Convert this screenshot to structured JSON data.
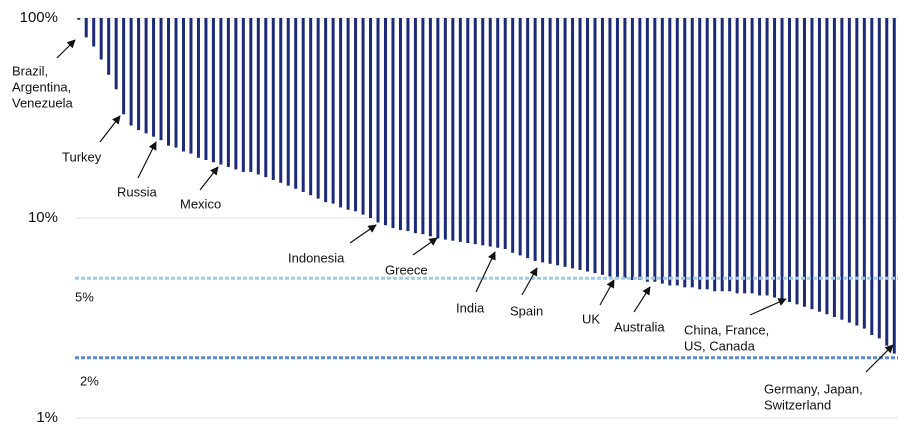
{
  "chart_data": {
    "type": "bar",
    "log_scale": true,
    "grid": true,
    "color": "#1c2a78",
    "ylim": [
      1,
      100
    ],
    "yticks": [
      {
        "value": 100,
        "label": "100%"
      },
      {
        "value": 10,
        "label": "10%"
      },
      {
        "value": 1,
        "label": "1%"
      }
    ],
    "values": [
      98,
      80,
      72,
      62,
      52,
      44,
      33,
      29,
      27.5,
      26.5,
      25.5,
      24.5,
      23,
      22.5,
      21.5,
      21,
      20,
      19.5,
      19,
      18.5,
      18,
      17.5,
      17,
      17,
      16.5,
      16,
      15.5,
      15,
      14.5,
      14,
      13.5,
      13,
      12.5,
      12,
      11.8,
      11.3,
      11,
      10.8,
      10.4,
      10,
      9.5,
      9.2,
      8.9,
      8.7,
      8.6,
      8.4,
      8.3,
      8.1,
      7.9,
      7.8,
      7.7,
      7.6,
      7.5,
      7.4,
      7.3,
      7.2,
      7.1,
      7,
      6.7,
      6.5,
      6.3,
      6.1,
      6,
      5.9,
      5.8,
      5.7,
      5.6,
      5.5,
      5.4,
      5.3,
      5.2,
      5.1,
      5,
      5,
      4.9,
      4.9,
      4.8,
      4.8,
      4.7,
      4.6,
      4.6,
      4.5,
      4.5,
      4.4,
      4.4,
      4.3,
      4.3,
      4.3,
      4.2,
      4.2,
      4.2,
      4.1,
      4.1,
      4,
      3.9,
      3.8,
      3.7,
      3.6,
      3.5,
      3.4,
      3.3,
      3.2,
      3.1,
      3,
      2.9,
      2.8,
      2.6,
      2.5,
      2.3,
      2.1
    ],
    "reference_lines": [
      {
        "value": 5,
        "label": "5%",
        "color": "#9fcbea"
      },
      {
        "value": 2,
        "label": "2%",
        "color": "#5b8ad6"
      }
    ],
    "annotations": [
      {
        "lines": [
          "Brazil,",
          "Argentina,",
          "Venezuela"
        ]
      },
      {
        "lines": [
          "Turkey"
        ]
      },
      {
        "lines": [
          "Russia"
        ]
      },
      {
        "lines": [
          "Mexico"
        ]
      },
      {
        "lines": [
          "Indonesia"
        ]
      },
      {
        "lines": [
          "Greece"
        ]
      },
      {
        "lines": [
          "India"
        ]
      },
      {
        "lines": [
          "Spain"
        ]
      },
      {
        "lines": [
          "UK"
        ]
      },
      {
        "lines": [
          "Australia"
        ]
      },
      {
        "lines": [
          "China, France,",
          "US, Canada"
        ]
      },
      {
        "lines": [
          "Germany, Japan,",
          "Switzerland"
        ]
      }
    ]
  }
}
